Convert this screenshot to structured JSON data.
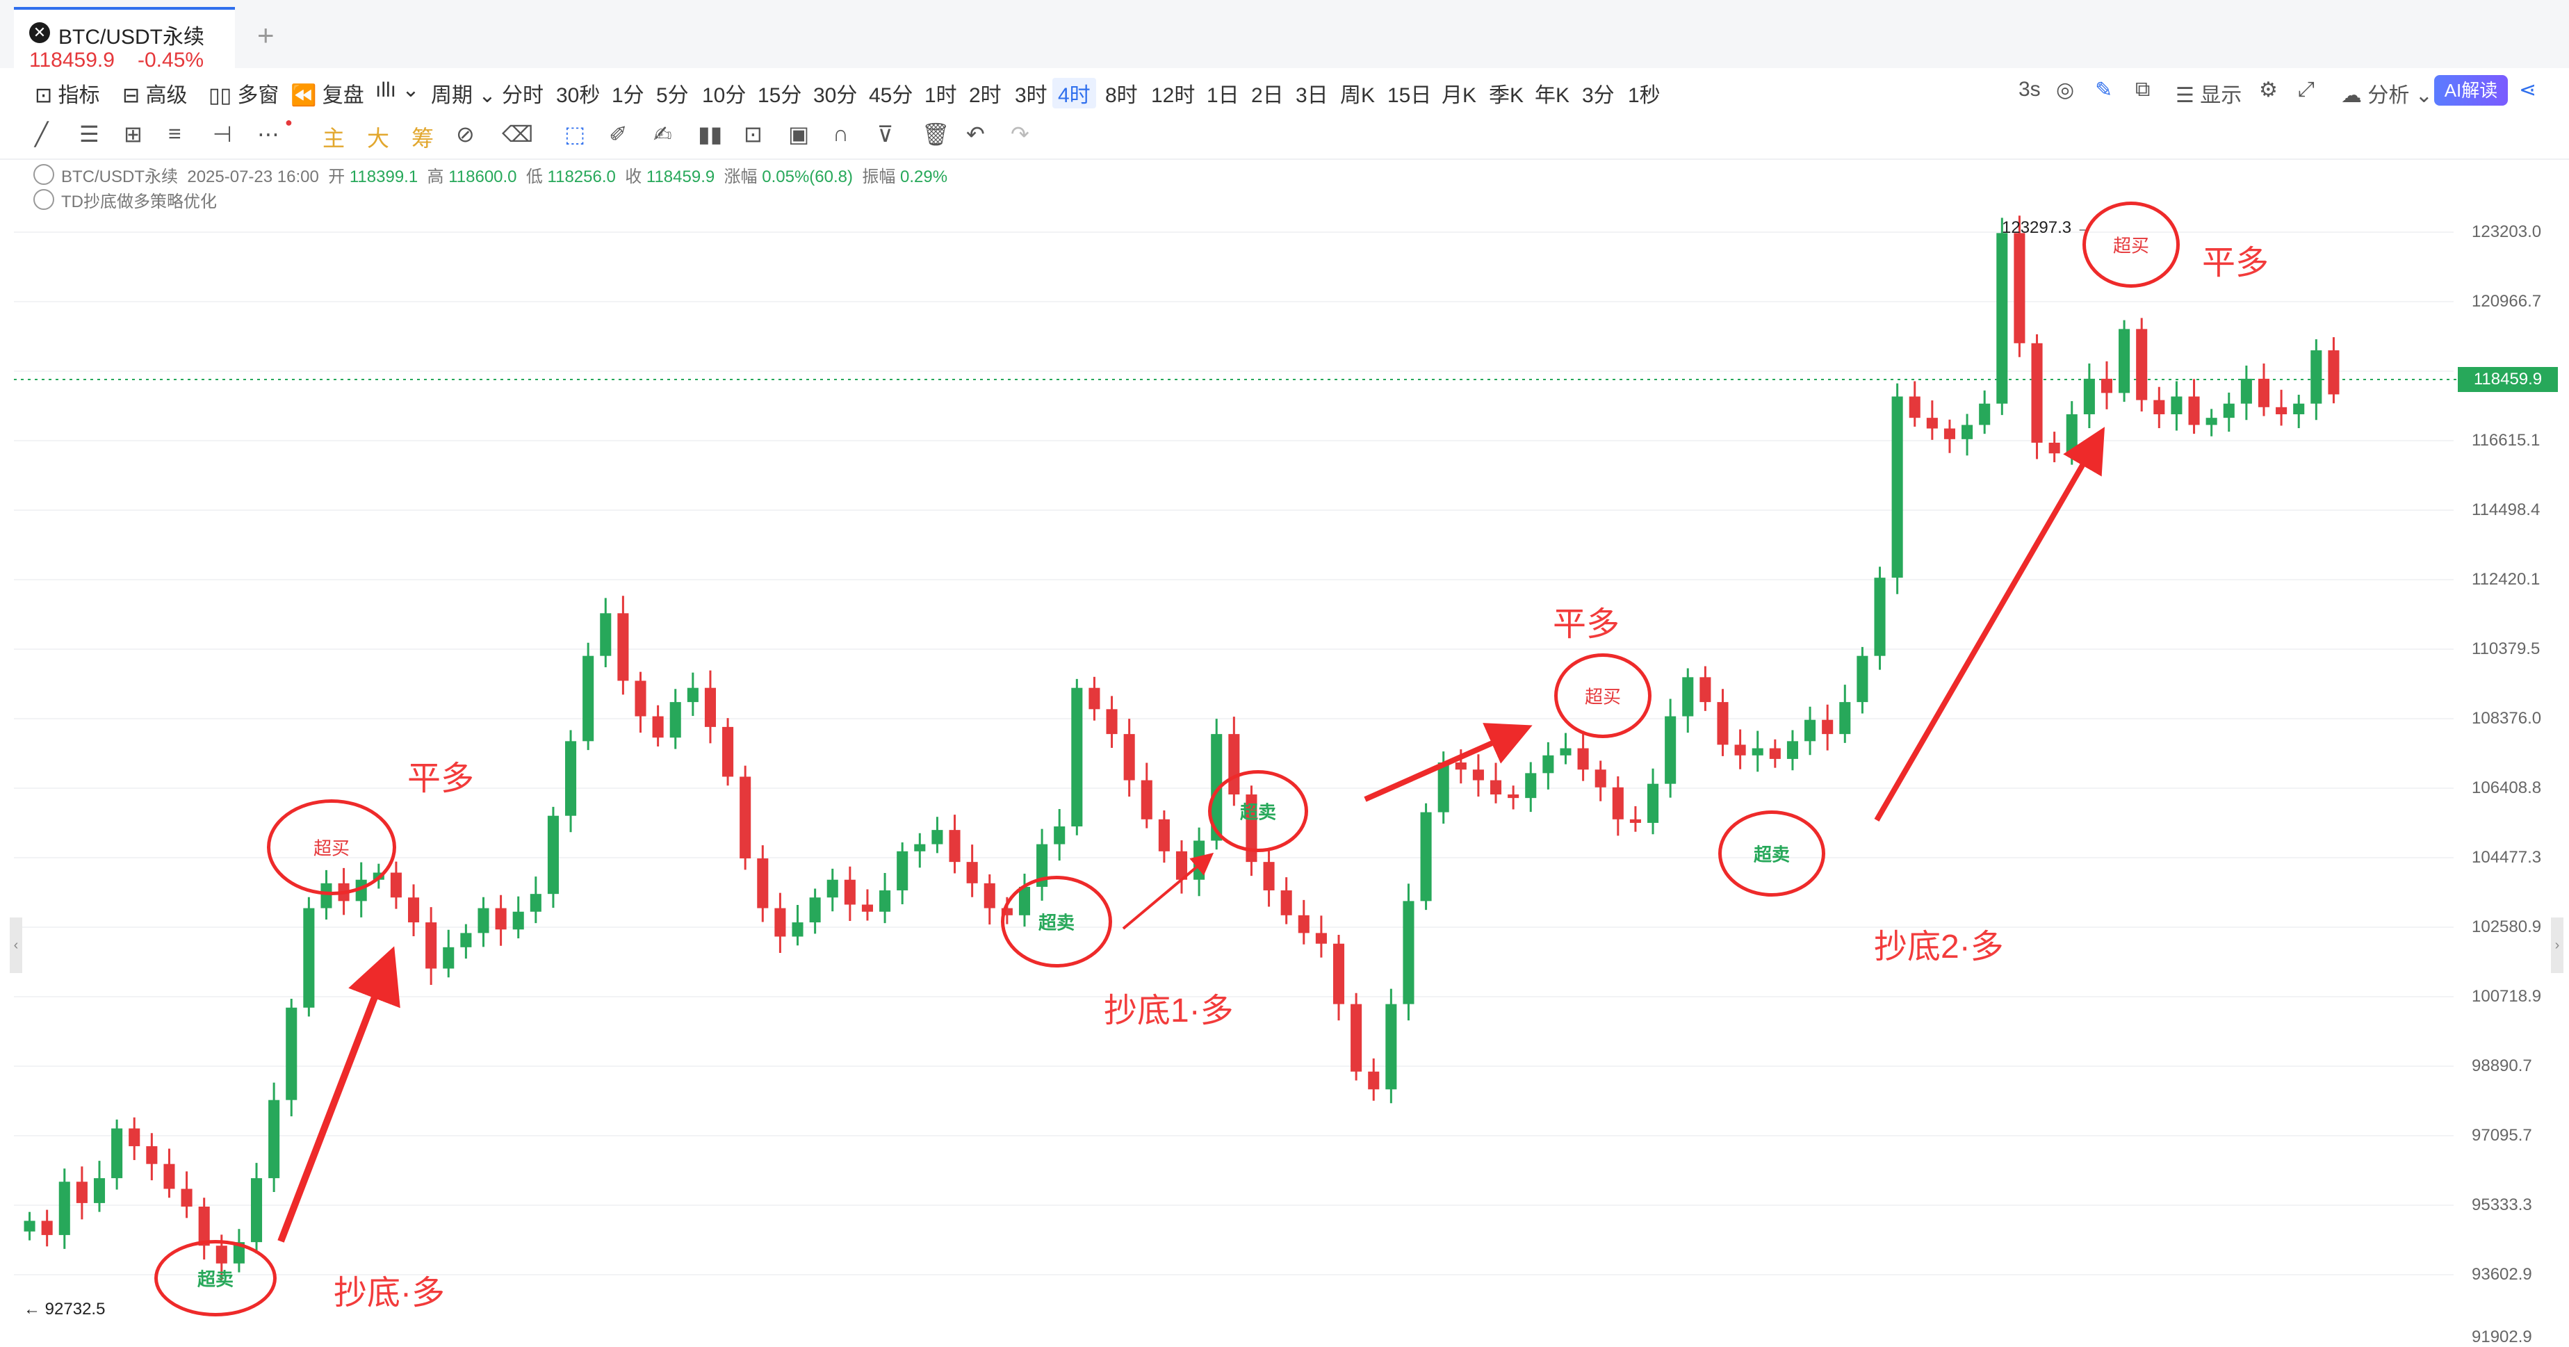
{
  "tab": {
    "title": "BTC/USDT永续",
    "price": "118459.9",
    "change": "-0.45%",
    "add": "+"
  },
  "toolbar": {
    "items": [
      "指标",
      "高级",
      "多窗",
      "复盘",
      "周期",
      "分时",
      "30秒",
      "1分",
      "5分",
      "10分",
      "15分",
      "30分",
      "45分",
      "1时",
      "2时",
      "3时",
      "4时",
      "8时",
      "12时",
      "1日",
      "2日",
      "3日",
      "周K",
      "15日",
      "月K",
      "季K",
      "年K",
      "3分",
      "1秒"
    ],
    "active": "4时",
    "right": {
      "interval": "3s",
      "display": "显示",
      "analysis": "分析",
      "ai": "AI解读"
    }
  },
  "drawtools": {
    "main": "主",
    "big": "大",
    "chip": "筹"
  },
  "info": {
    "symbol": "BTC/USDT永续",
    "time": "2025-07-23 16:00",
    "open_label": "开",
    "open": "118399.1",
    "high_label": "高",
    "high": "118600.0",
    "low_label": "低",
    "low": "118256.0",
    "close_label": "收",
    "close": "118459.9",
    "chg_label": "涨幅",
    "chg": "0.05%(60.8)",
    "amp_label": "振幅",
    "amp": "0.29%",
    "strategy": "TD抄底做多策略优化"
  },
  "yaxis": [
    "123203.0",
    "120966.7",
    "116615.1",
    "114498.4",
    "112420.1",
    "110379.5",
    "108376.0",
    "106408.8",
    "104477.3",
    "102580.9",
    "100718.9",
    "98890.7",
    "97095.7",
    "95333.3",
    "93602.9",
    "91902.9"
  ],
  "current_price": "118459.9",
  "high_marker": "123297.3",
  "low_marker": "92732.5",
  "colors": {
    "up": "#27a85a",
    "down": "#e5383b",
    "annotation": "#ee2a2a",
    "accent": "#2f6fed"
  },
  "annotations": {
    "oversold": "超卖",
    "overbought": "超买",
    "close_long": "平多",
    "bottom_long": "抄底·多",
    "bottom_long_1": "抄底1·多",
    "bottom_long_2": "抄底2·多"
  },
  "chart_data": {
    "type": "candlestick",
    "symbol": "BTC/USDT永续",
    "timeframe": "4时",
    "y_range": [
      91902.9,
      123300
    ],
    "closes": [
      95200,
      94800,
      96300,
      95700,
      96400,
      97800,
      97300,
      96800,
      96100,
      95600,
      94500,
      94000,
      94600,
      96400,
      98600,
      101200,
      104000,
      104700,
      104200,
      104800,
      105000,
      104300,
      103600,
      102300,
      102900,
      103300,
      104000,
      103400,
      103900,
      104400,
      106600,
      108700,
      111100,
      112300,
      110400,
      109400,
      108800,
      109800,
      110200,
      109100,
      107700,
      105400,
      104000,
      103200,
      103600,
      104300,
      104800,
      104100,
      103900,
      104500,
      105600,
      105800,
      106200,
      105300,
      104700,
      104000,
      103800,
      104600,
      105800,
      106300,
      110200,
      109600,
      108900,
      107600,
      106500,
      105600,
      104800,
      105900,
      108900,
      107200,
      105300,
      104500,
      103800,
      103300,
      103000,
      101300,
      99400,
      98900,
      101300,
      104200,
      106700,
      108100,
      107900,
      107600,
      107200,
      107100,
      107800,
      108300,
      108500,
      107900,
      107400,
      106500,
      106400,
      107500,
      109400,
      110500,
      109800,
      108600,
      108300,
      108500,
      108200,
      108700,
      109300,
      108900,
      109800,
      111100,
      113300,
      118400,
      117800,
      117500,
      117200,
      117600,
      118200,
      123000,
      119900,
      117100,
      116800,
      117900,
      118900,
      118500,
      120300,
      118300,
      117900,
      118400,
      117600,
      117800,
      118200,
      118900,
      118100,
      117900,
      118200,
      119700,
      118460
    ]
  }
}
